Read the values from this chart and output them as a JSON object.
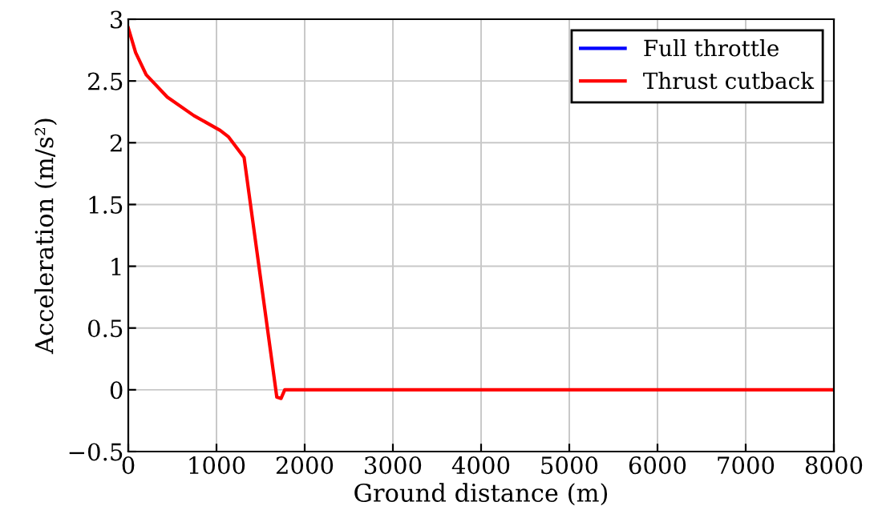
{
  "chart_data": {
    "type": "line",
    "xlabel": "Ground distance (m)",
    "ylabel": "Acceleration (m/s²)",
    "x": [
      0,
      83,
      203,
      442,
      743,
      1042,
      1133,
      1313,
      1684,
      1732,
      1774,
      8000
    ],
    "series": [
      {
        "name": "Full throttle",
        "color": "#0000ff",
        "values": [
          null,
          null,
          null,
          null,
          null,
          null,
          null,
          null,
          null,
          null,
          null,
          null
        ]
      },
      {
        "name": "Thrust cutback",
        "color": "#ff0000",
        "values": [
          2.93,
          2.73,
          2.55,
          2.37,
          2.22,
          2.1,
          2.05,
          1.88,
          -0.06,
          -0.07,
          0,
          0
        ]
      }
    ],
    "xlim": [
      0,
      8000
    ],
    "xticks": [
      0,
      1000,
      2000,
      3000,
      4000,
      5000,
      6000,
      7000,
      8000
    ],
    "ylim": [
      -0.5,
      3
    ],
    "yticks": [
      {
        "value": -0.5,
        "label": "−0.5"
      },
      0,
      0.5,
      1,
      1.5,
      2,
      2.5,
      3
    ],
    "grid": true,
    "legend": "top right",
    "marker": "none",
    "line_style": "solid"
  }
}
